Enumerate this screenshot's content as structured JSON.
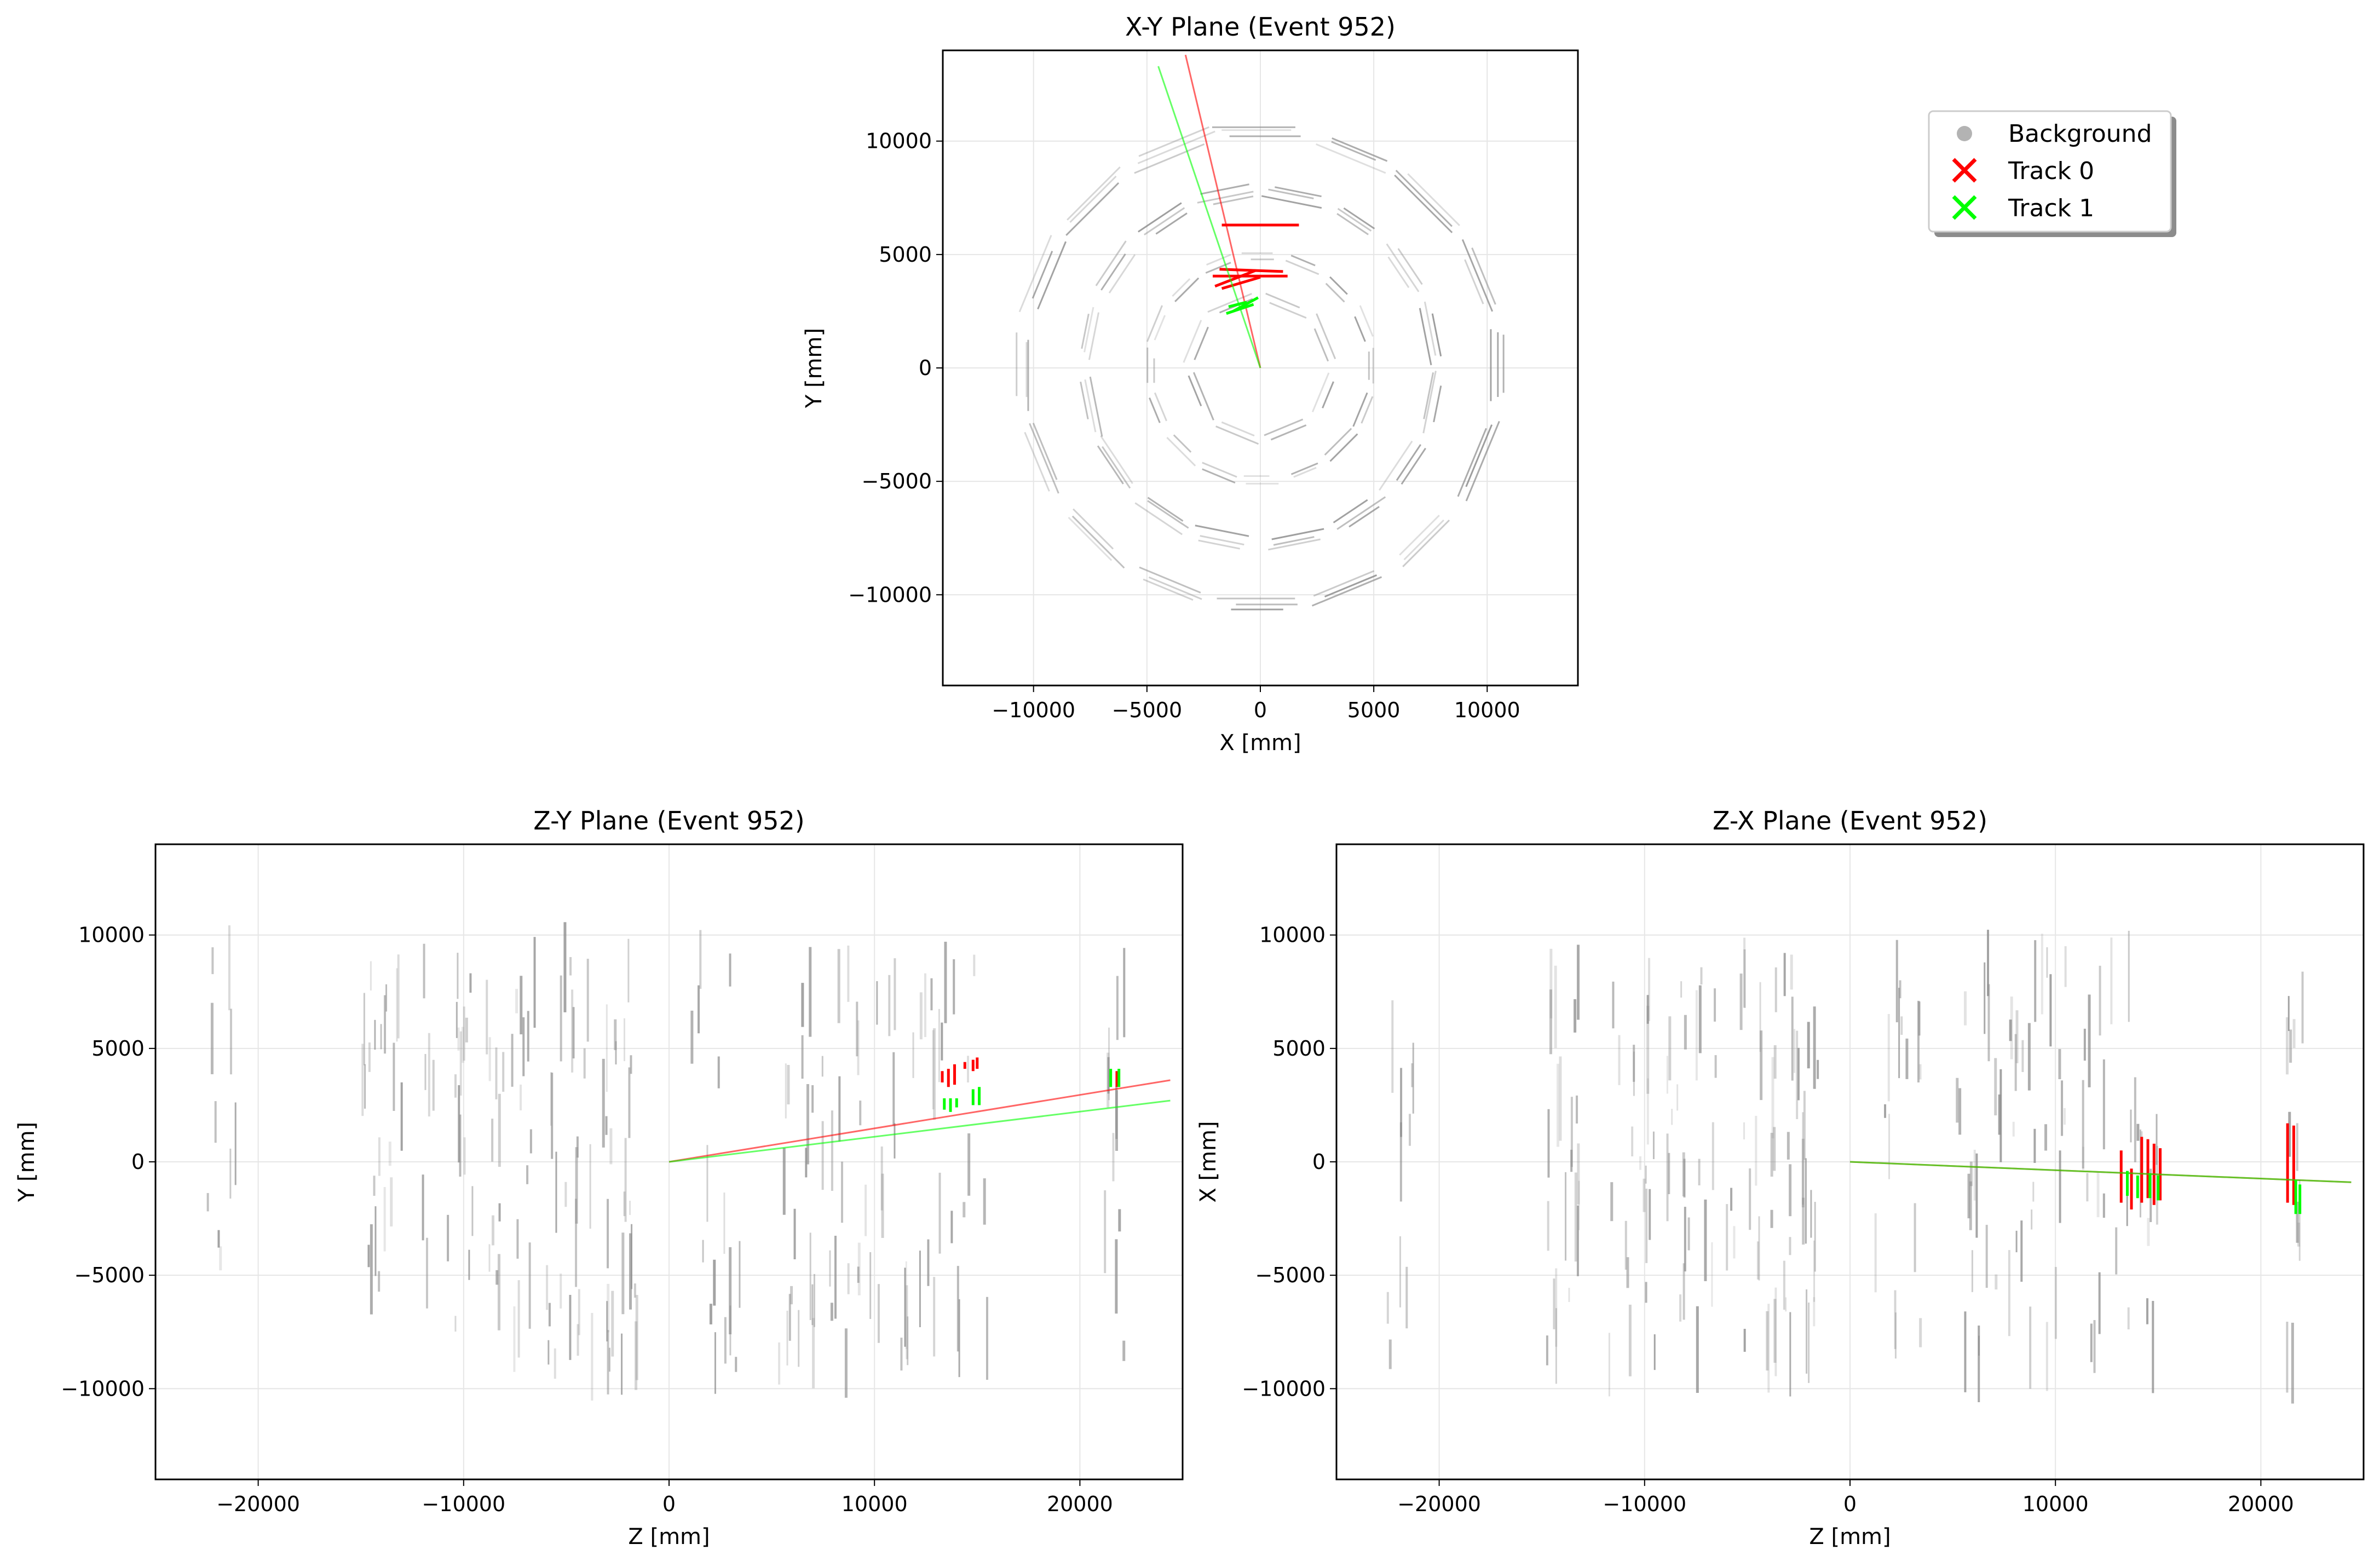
{
  "figure": {
    "background": "#ffffff"
  },
  "colors": {
    "background_hits": "#8c8c8c",
    "track_0": "#ff0000",
    "track_1": "#00ff00",
    "grid": "#e6e6e6",
    "axes": "#000000"
  },
  "legend": {
    "placement": "top-right",
    "entries": [
      {
        "label": "Background",
        "marker": "circle",
        "color": "#b3b3b3"
      },
      {
        "label": "Track 0",
        "marker": "x",
        "color": "#ff0000"
      },
      {
        "label": "Track 1",
        "marker": "x",
        "color": "#00ff00"
      }
    ]
  },
  "chart_data": [
    {
      "type": "scatter",
      "view": "xy",
      "title": "X-Y Plane (Event 952)",
      "xlabel": "X [mm]",
      "ylabel": "Y [mm]",
      "xlim": [
        -14000,
        14000
      ],
      "ylim": [
        -14000,
        14000
      ],
      "xticks": [
        -10000,
        -5000,
        0,
        5000,
        10000
      ],
      "yticks": [
        -10000,
        -5000,
        0,
        5000,
        10000
      ],
      "xtick_labels": [
        "−10000",
        "−5000",
        "0",
        "5000",
        "10000"
      ],
      "ytick_labels": [
        "−10000",
        "−5000",
        "0",
        "5000",
        "10000"
      ],
      "grid": true,
      "detector_rings": [
        {
          "radius": 10400,
          "sides": 16,
          "rotation_deg": 0,
          "segments_per_side": 3
        },
        {
          "radius": 7700,
          "sides": 16,
          "rotation_deg": 11.25,
          "segments_per_side": 3
        },
        {
          "radius": 4900,
          "sides": 16,
          "rotation_deg": 0,
          "segments_per_side": 2
        },
        {
          "radius": 3000,
          "sides": 8,
          "rotation_deg": 22.5,
          "segments_per_side": 2
        }
      ],
      "series": [
        {
          "name": "Track 0",
          "color": "#ff0000",
          "segments": [
            [
              [
                -1700,
                6300
              ],
              [
                1700,
                6300
              ]
            ],
            [
              [
                -2100,
                4050
              ],
              [
                1200,
                4050
              ]
            ],
            [
              [
                -1800,
                4350
              ],
              [
                1000,
                4250
              ]
            ],
            [
              [
                -2000,
                3600
              ],
              [
                -200,
                4300
              ]
            ],
            [
              [
                -1700,
                3500
              ],
              [
                0,
                4000
              ]
            ]
          ],
          "fit_line": [
            [
              0,
              0
            ],
            [
              -3300,
              13800
            ]
          ]
        },
        {
          "name": "Track 1",
          "color": "#00ff00",
          "segments": [
            [
              [
                -1500,
                2400
              ],
              [
                -300,
                2800
              ]
            ],
            [
              [
                -1200,
                2500
              ],
              [
                -100,
                3100
              ]
            ],
            [
              [
                -1400,
                2700
              ],
              [
                -600,
                2900
              ]
            ]
          ],
          "fit_line": [
            [
              0,
              0
            ],
            [
              -4500,
              13300
            ]
          ]
        }
      ]
    },
    {
      "type": "scatter",
      "view": "zy",
      "title": "Z-Y Plane (Event 952)",
      "xlabel": "Z [mm]",
      "ylabel": "Y [mm]",
      "xlim": [
        -25000,
        25000
      ],
      "ylim": [
        -14000,
        14000
      ],
      "xticks": [
        -20000,
        -10000,
        0,
        10000,
        20000
      ],
      "yticks": [
        -10000,
        -5000,
        0,
        5000,
        10000
      ],
      "xtick_labels": [
        "−20000",
        "−10000",
        "0",
        "10000",
        "20000"
      ],
      "ytick_labels": [
        "−10000",
        "−5000",
        "0",
        "5000",
        "10000"
      ],
      "grid": true,
      "series": [
        {
          "name": "Track 0",
          "color": "#ff0000",
          "segments": [
            [
              [
                13300,
                3500
              ],
              [
                13300,
                4000
              ]
            ],
            [
              [
                13600,
                3300
              ],
              [
                13600,
                4100
              ]
            ],
            [
              [
                13900,
                3400
              ],
              [
                13900,
                4300
              ]
            ],
            [
              [
                14400,
                4100
              ],
              [
                14400,
                4400
              ]
            ],
            [
              [
                14800,
                4000
              ],
              [
                14800,
                4500
              ]
            ],
            [
              [
                15000,
                4100
              ],
              [
                15000,
                4600
              ]
            ],
            [
              [
                21800,
                3300
              ],
              [
                21800,
                4000
              ]
            ]
          ],
          "fit_line": [
            [
              0,
              0
            ],
            [
              24400,
              3600
            ]
          ]
        },
        {
          "name": "Track 1",
          "color": "#00ff00",
          "segments": [
            [
              [
                13400,
                2300
              ],
              [
                13400,
                2800
              ]
            ],
            [
              [
                13700,
                2200
              ],
              [
                13700,
                2800
              ]
            ],
            [
              [
                14000,
                2400
              ],
              [
                14000,
                2800
              ]
            ],
            [
              [
                14800,
                2500
              ],
              [
                14800,
                3200
              ]
            ],
            [
              [
                15100,
                2500
              ],
              [
                15100,
                3300
              ]
            ],
            [
              [
                21500,
                3300
              ],
              [
                21500,
                4100
              ]
            ],
            [
              [
                21900,
                3300
              ],
              [
                21900,
                4100
              ]
            ]
          ],
          "fit_line": [
            [
              0,
              0
            ],
            [
              24400,
              2700
            ]
          ]
        }
      ]
    },
    {
      "type": "scatter",
      "view": "zx",
      "title": "Z-X Plane (Event 952)",
      "xlabel": "Z [mm]",
      "ylabel": "X [mm]",
      "xlim": [
        -25000,
        25000
      ],
      "ylim": [
        -14000,
        14000
      ],
      "xticks": [
        -20000,
        -10000,
        0,
        10000,
        20000
      ],
      "yticks": [
        -10000,
        -5000,
        0,
        5000,
        10000
      ],
      "xtick_labels": [
        "−20000",
        "−10000",
        "0",
        "10000",
        "20000"
      ],
      "ytick_labels": [
        "−10000",
        "−5000",
        "0",
        "5000",
        "10000"
      ],
      "grid": true,
      "series": [
        {
          "name": "Track 0",
          "color": "#ff0000",
          "segments": [
            [
              [
                13200,
                -1800
              ],
              [
                13200,
                500
              ]
            ],
            [
              [
                13700,
                -2100
              ],
              [
                13700,
                -300
              ]
            ],
            [
              [
                14200,
                -1800
              ],
              [
                14200,
                1100
              ]
            ],
            [
              [
                14500,
                -1600
              ],
              [
                14500,
                1000
              ]
            ],
            [
              [
                14800,
                -1900
              ],
              [
                14800,
                800
              ]
            ],
            [
              [
                15100,
                -1700
              ],
              [
                15100,
                600
              ]
            ],
            [
              [
                21300,
                -1800
              ],
              [
                21300,
                1700
              ]
            ],
            [
              [
                21600,
                -1900
              ],
              [
                21600,
                1600
              ]
            ]
          ],
          "fit_line": [
            [
              0,
              0
            ],
            [
              24400,
              -900
            ]
          ]
        },
        {
          "name": "Track 1",
          "color": "#00ff00",
          "segments": [
            [
              [
                13500,
                -1500
              ],
              [
                13500,
                -400
              ]
            ],
            [
              [
                14000,
                -1600
              ],
              [
                14000,
                -600
              ]
            ],
            [
              [
                14600,
                -1600
              ],
              [
                14600,
                -500
              ]
            ],
            [
              [
                15000,
                -1700
              ],
              [
                15000,
                -600
              ]
            ],
            [
              [
                21700,
                -2300
              ],
              [
                21700,
                -800
              ]
            ],
            [
              [
                21900,
                -2300
              ],
              [
                21900,
                -1000
              ]
            ]
          ],
          "fit_line": [
            [
              0,
              0
            ],
            [
              24400,
              -900
            ]
          ]
        }
      ]
    }
  ]
}
